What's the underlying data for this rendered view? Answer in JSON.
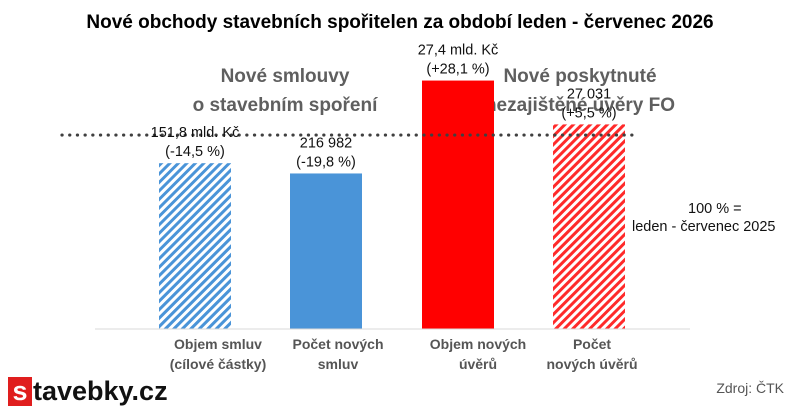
{
  "chart_data": {
    "type": "bar",
    "title": "Nové obchody stavebních spořitelen za období leden - červenec 2026",
    "groups": [
      {
        "label": "Nové smlouvy\no stavebním spoření",
        "categories": [
          0,
          1
        ]
      },
      {
        "label": "Nové poskytnuté\nnezajištěné úvěry FO",
        "categories": [
          2,
          3
        ]
      }
    ],
    "categories": [
      "Objem smluv\n(cílové částky)",
      "Počet  nových\nsmluv",
      "Objem nových\núvěrů",
      "Počet\nnových úvěrů"
    ],
    "values_index_pct": [
      85.5,
      80.2,
      128.1,
      105.5
    ],
    "data_labels": [
      "151,8 mld. Kč\n(-14,5 %)",
      "216 982\n(-19,8 %)",
      "27,4 mld. Kč\n(+28,1 %)",
      "27 031\n(+5,5 %)"
    ],
    "bar_styles": [
      "hatched",
      "solid",
      "solid",
      "hatched"
    ],
    "bar_colors": [
      "#4a94d8",
      "#4a94d8",
      "#ff0000",
      "#ff2a2a"
    ],
    "reference_line": {
      "value": 100,
      "label": "100 % =\nleden - červenec 2025"
    },
    "ylim": [
      0,
      132
    ],
    "grid": false,
    "legend": "none"
  },
  "branding": {
    "logo_initial": "s",
    "logo_rest": "tavebky.cz",
    "logo_color": "#e01e1e",
    "source": "Zdroj: ČTK"
  }
}
